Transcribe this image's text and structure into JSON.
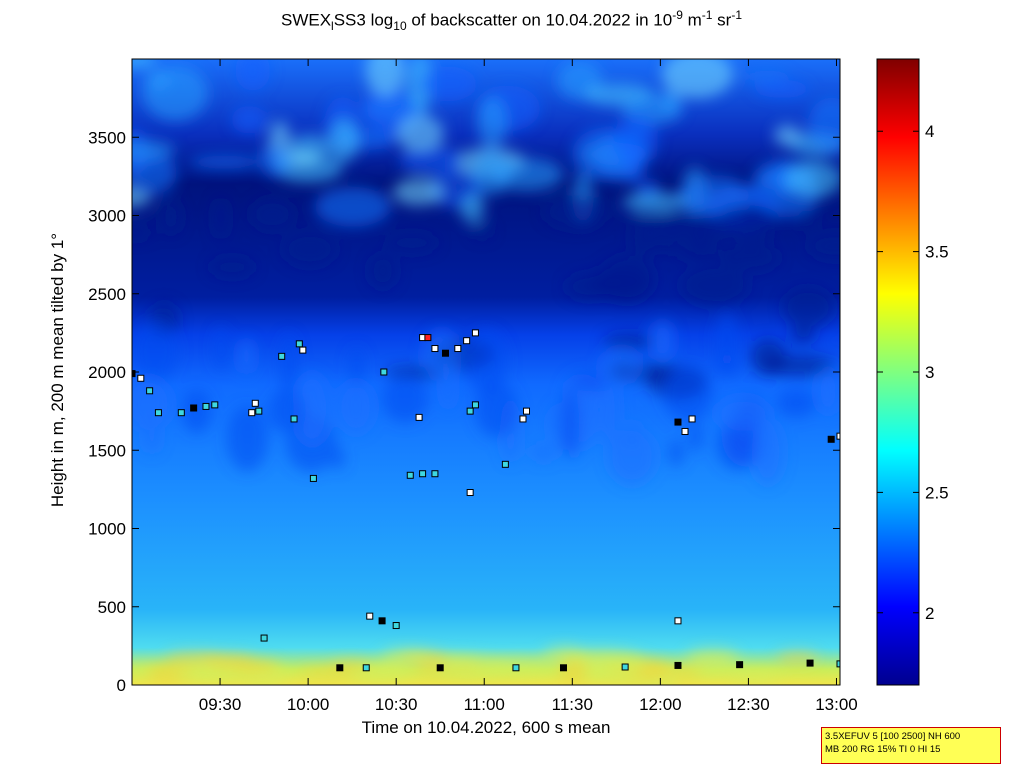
{
  "title": {
    "prefix": "SWEX",
    "sub1": "l",
    "mid": "SS3 log",
    "sub2": "10",
    "mid2": " of backscatter on 10.04.2022 in 10",
    "sup1": "-9",
    "mid3": " m",
    "sup2": "-1",
    "mid4": " sr",
    "sup3": "-1"
  },
  "info_box": {
    "line1": "3.5XEFUV 5 [100 2500] NH 600",
    "line2": "MB 200 RG 15% TI 0 HI 15"
  },
  "chart_data": {
    "type": "heatmap",
    "xlabel": "Time on 10.04.2022, 600 s mean",
    "ylabel": "Height in m, 200 m mean tilted by 1°",
    "x_ticks": [
      "09:30",
      "10:00",
      "10:30",
      "11:00",
      "11:30",
      "12:00",
      "12:30",
      "13:00"
    ],
    "x_tick_hours": [
      9.5,
      10.0,
      10.5,
      11.0,
      11.5,
      12.0,
      12.5,
      13.0
    ],
    "xlim_hours": [
      9.0,
      13.02
    ],
    "y_ticks": [
      0,
      500,
      1000,
      1500,
      2000,
      2500,
      3000,
      3500
    ],
    "ylim": [
      0,
      4000
    ],
    "colorbar": {
      "range": [
        1.7,
        4.3
      ],
      "ticks": [
        2,
        2.5,
        3,
        3.5,
        4
      ],
      "tick_labels": [
        "2",
        "2.5",
        "3",
        "3.5",
        "4"
      ],
      "colormap": "jet"
    },
    "cloud_base_markers": [
      {
        "t": 9.0,
        "h": 1990,
        "c": "black"
      },
      {
        "t": 9.05,
        "h": 1960,
        "c": "white"
      },
      {
        "t": 9.1,
        "h": 1880,
        "c": "cyan"
      },
      {
        "t": 9.15,
        "h": 1740,
        "c": "cyan"
      },
      {
        "t": 9.28,
        "h": 1740,
        "c": "cyan"
      },
      {
        "t": 9.35,
        "h": 1770,
        "c": "black"
      },
      {
        "t": 9.42,
        "h": 1780,
        "c": "cyan"
      },
      {
        "t": 9.47,
        "h": 1790,
        "c": "cyan"
      },
      {
        "t": 9.68,
        "h": 1740,
        "c": "white"
      },
      {
        "t": 9.7,
        "h": 1800,
        "c": "white"
      },
      {
        "t": 9.72,
        "h": 1750,
        "c": "cyan"
      },
      {
        "t": 9.92,
        "h": 1700,
        "c": "cyan"
      },
      {
        "t": 9.95,
        "h": 2180,
        "c": "cyan"
      },
      {
        "t": 9.97,
        "h": 2140,
        "c": "white"
      },
      {
        "t": 9.85,
        "h": 2100,
        "c": "cyan"
      },
      {
        "t": 10.03,
        "h": 1320,
        "c": "cyan"
      },
      {
        "t": 10.43,
        "h": 2000,
        "c": "cyan"
      },
      {
        "t": 10.63,
        "h": 1710,
        "c": "white"
      },
      {
        "t": 10.58,
        "h": 1340,
        "c": "cyan"
      },
      {
        "t": 10.65,
        "h": 1350,
        "c": "cyan"
      },
      {
        "t": 10.72,
        "h": 1350,
        "c": "cyan"
      },
      {
        "t": 10.65,
        "h": 2220,
        "c": "white"
      },
      {
        "t": 10.68,
        "h": 2220,
        "c": "red"
      },
      {
        "t": 10.72,
        "h": 2150,
        "c": "white"
      },
      {
        "t": 10.78,
        "h": 2120,
        "c": "black"
      },
      {
        "t": 10.85,
        "h": 2150,
        "c": "white"
      },
      {
        "t": 10.9,
        "h": 2200,
        "c": "white"
      },
      {
        "t": 10.95,
        "h": 2250,
        "c": "white"
      },
      {
        "t": 10.92,
        "h": 1750,
        "c": "cyan"
      },
      {
        "t": 10.95,
        "h": 1790,
        "c": "cyan"
      },
      {
        "t": 10.92,
        "h": 1230,
        "c": "white"
      },
      {
        "t": 11.12,
        "h": 1410,
        "c": "cyan"
      },
      {
        "t": 11.22,
        "h": 1700,
        "c": "white"
      },
      {
        "t": 11.24,
        "h": 1750,
        "c": "white"
      },
      {
        "t": 9.75,
        "h": 300,
        "c": "cyan"
      },
      {
        "t": 10.35,
        "h": 440,
        "c": "white"
      },
      {
        "t": 10.42,
        "h": 410,
        "c": "black"
      },
      {
        "t": 10.5,
        "h": 380,
        "c": "cyan"
      },
      {
        "t": 12.1,
        "h": 410,
        "c": "white"
      },
      {
        "t": 12.1,
        "h": 1680,
        "c": "black"
      },
      {
        "t": 12.14,
        "h": 1620,
        "c": "white"
      },
      {
        "t": 12.18,
        "h": 1700,
        "c": "white"
      },
      {
        "t": 12.97,
        "h": 1570,
        "c": "black"
      },
      {
        "t": 13.02,
        "h": 1590,
        "c": "white"
      },
      {
        "t": 10.18,
        "h": 110,
        "c": "black"
      },
      {
        "t": 10.33,
        "h": 110,
        "c": "cyan"
      },
      {
        "t": 10.75,
        "h": 110,
        "c": "black"
      },
      {
        "t": 11.18,
        "h": 110,
        "c": "cyan"
      },
      {
        "t": 11.45,
        "h": 110,
        "c": "black"
      },
      {
        "t": 11.8,
        "h": 115,
        "c": "cyan"
      },
      {
        "t": 12.1,
        "h": 125,
        "c": "black"
      },
      {
        "t": 12.45,
        "h": 130,
        "c": "black"
      },
      {
        "t": 12.85,
        "h": 140,
        "c": "black"
      },
      {
        "t": 13.02,
        "h": 135,
        "c": "cyan"
      }
    ]
  }
}
